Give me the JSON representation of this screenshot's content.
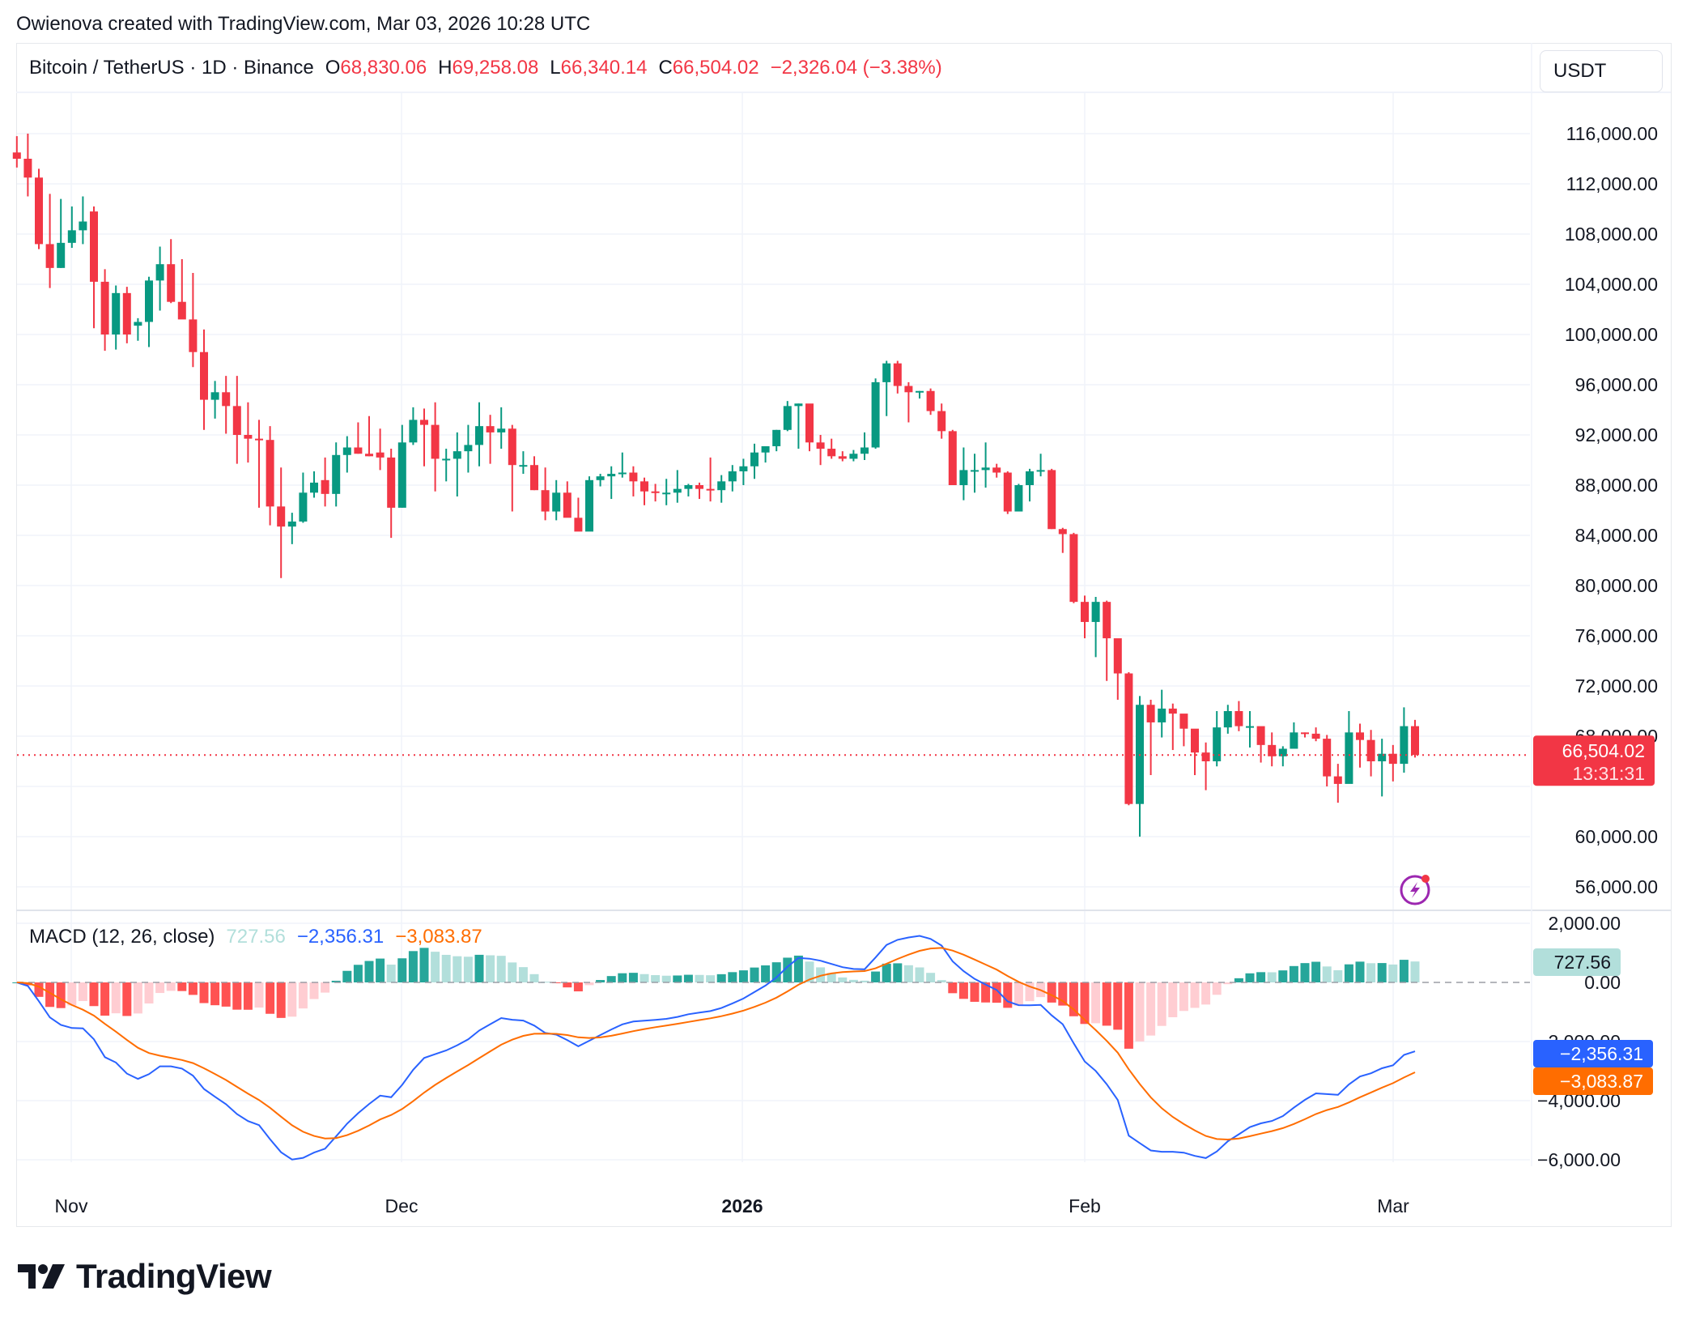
{
  "credit": "Owienova created with TradingView.com, Mar 03, 2026 10:28 UTC",
  "header": {
    "symbol": "Bitcoin / TetherUS · 1D · Binance",
    "open_label": "O",
    "open": "68,830.06",
    "high_label": "H",
    "high": "69,258.08",
    "low_label": "L",
    "low": "66,340.14",
    "close_label": "C",
    "close": "66,504.02",
    "change": "−2,326.04 (−3.38%)",
    "currency": "USDT"
  },
  "price_axis": {
    "ticks": [
      "116,000.00",
      "112,000.00",
      "108,000.00",
      "104,000.00",
      "100,000.00",
      "96,000.00",
      "92,000.00",
      "88,000.00",
      "84,000.00",
      "80,000.00",
      "76,000.00",
      "72,000.00",
      "68,000.00",
      "60,000.00",
      "56,000.00"
    ],
    "last_price": "66,504.02",
    "countdown": "13:31:31"
  },
  "macd": {
    "title": "MACD (12, 26, close)",
    "histogram": "727.56",
    "macd": "−2,356.31",
    "signal": "−3,083.87",
    "axis_ticks": [
      "2,000.00",
      "0.00",
      "−2,000.00",
      "−4,000.00",
      "−6,000.00"
    ]
  },
  "time_axis": {
    "labels": [
      "Nov",
      "Dec",
      "2026",
      "Feb",
      "Mar"
    ]
  },
  "brand": "TradingView",
  "colors": {
    "up": "#089981",
    "down": "#f23645",
    "hist_up_strong": "#26a69a",
    "hist_up_weak": "#b2dfdb",
    "hist_down_strong": "#ff5252",
    "hist_down_weak": "#ffcdd2",
    "macd_line": "#2962ff",
    "signal_line": "#ff6d00",
    "last_price_bg": "#f23645",
    "alert_icon": "#9c27b0"
  },
  "chart_data": {
    "type": "candlestick",
    "title": "Bitcoin / TetherUS · 1D · Binance",
    "xlabel": "",
    "ylabel": "USDT",
    "ylim": [
      54000,
      118000
    ],
    "x_tick_labels": [
      "Nov",
      "Dec",
      "2026",
      "Feb",
      "Mar"
    ],
    "grid": true,
    "candles_ohlc": [
      [
        114500,
        115800,
        113300,
        114000
      ],
      [
        114000,
        116000,
        111000,
        112500
      ],
      [
        112500,
        113200,
        106800,
        107200
      ],
      [
        107200,
        111200,
        103700,
        105300
      ],
      [
        105300,
        110800,
        105300,
        107300
      ],
      [
        107300,
        110200,
        106900,
        108300
      ],
      [
        108300,
        111000,
        107200,
        109000
      ],
      [
        109800,
        110200,
        100500,
        104200
      ],
      [
        104200,
        105200,
        98700,
        100000
      ],
      [
        100000,
        103900,
        98800,
        103300
      ],
      [
        103300,
        103800,
        99300,
        100000
      ],
      [
        100700,
        101300,
        99500,
        101000
      ],
      [
        101000,
        104600,
        99000,
        104300
      ],
      [
        104300,
        107000,
        101900,
        105600
      ],
      [
        105600,
        107600,
        102500,
        102600
      ],
      [
        102600,
        106000,
        101500,
        101200
      ],
      [
        101200,
        104900,
        97400,
        98600
      ],
      [
        98600,
        100400,
        92400,
        94800
      ],
      [
        94800,
        96300,
        93300,
        95400
      ],
      [
        95400,
        96700,
        92100,
        94300
      ],
      [
        94300,
        96700,
        89700,
        92000
      ],
      [
        92000,
        94600,
        89800,
        91700
      ],
      [
        91700,
        93200,
        86200,
        91600
      ],
      [
        91600,
        92700,
        84800,
        86300
      ],
      [
        86300,
        89400,
        80600,
        84700
      ],
      [
        84700,
        85800,
        83300,
        85100
      ],
      [
        85100,
        89000,
        85000,
        87400
      ],
      [
        87400,
        89100,
        87000,
        88200
      ],
      [
        88400,
        90200,
        86300,
        87300
      ],
      [
        87300,
        91400,
        86300,
        90400
      ],
      [
        90400,
        91900,
        89000,
        91000
      ],
      [
        91000,
        93000,
        90500,
        90500
      ],
      [
        90500,
        93500,
        90300,
        90300
      ],
      [
        90600,
        92500,
        89200,
        90200
      ],
      [
        90200,
        90900,
        83800,
        86200
      ],
      [
        86200,
        92800,
        86200,
        91400
      ],
      [
        91400,
        94200,
        91200,
        93200
      ],
      [
        93200,
        94100,
        89500,
        92800
      ],
      [
        92800,
        94600,
        87500,
        90100
      ],
      [
        90100,
        90900,
        88300,
        90100
      ],
      [
        90100,
        92200,
        87100,
        90700
      ],
      [
        90700,
        92800,
        89000,
        91200
      ],
      [
        91200,
        94600,
        89500,
        92700
      ],
      [
        92700,
        93600,
        89700,
        92200
      ],
      [
        92200,
        94200,
        90900,
        92500
      ],
      [
        92500,
        92800,
        85900,
        89600
      ],
      [
        89600,
        90700,
        88900,
        89600
      ],
      [
        89600,
        90300,
        87600,
        87600
      ],
      [
        87600,
        89400,
        85200,
        85900
      ],
      [
        85900,
        88400,
        85200,
        87400
      ],
      [
        87400,
        88300,
        85500,
        85400
      ],
      [
        85400,
        87000,
        84600,
        84300
      ],
      [
        84300,
        88700,
        84600,
        88400
      ],
      [
        88400,
        88900,
        87900,
        88700
      ],
      [
        88700,
        89500,
        86900,
        88900
      ],
      [
        88900,
        90600,
        88600,
        89000
      ],
      [
        89000,
        89500,
        87100,
        88300
      ],
      [
        88300,
        88600,
        86400,
        87500
      ],
      [
        87500,
        88100,
        86700,
        87400
      ],
      [
        87400,
        88500,
        86400,
        87400
      ],
      [
        87400,
        89200,
        86600,
        87700
      ],
      [
        87700,
        88100,
        87100,
        88000
      ],
      [
        88000,
        88200,
        86900,
        87700
      ],
      [
        87700,
        90200,
        86700,
        87600
      ],
      [
        87600,
        88800,
        86600,
        88300
      ],
      [
        88300,
        89600,
        87500,
        89100
      ],
      [
        89100,
        90100,
        88000,
        89500
      ],
      [
        89500,
        91300,
        88500,
        90600
      ],
      [
        90600,
        91000,
        89800,
        91100
      ],
      [
        91100,
        92400,
        90700,
        92400
      ],
      [
        92400,
        94700,
        92300,
        94300
      ],
      [
        94300,
        94500,
        90900,
        94500
      ],
      [
        94500,
        94300,
        90700,
        91400
      ],
      [
        91400,
        92000,
        89600,
        90900
      ],
      [
        90900,
        91700,
        90100,
        90300
      ],
      [
        90300,
        90700,
        89900,
        90100
      ],
      [
        90100,
        90800,
        89900,
        90500
      ],
      [
        90500,
        92200,
        90000,
        91000
      ],
      [
        91000,
        96500,
        90900,
        96200
      ],
      [
        96200,
        97900,
        93500,
        97700
      ],
      [
        97700,
        97900,
        95300,
        95900
      ],
      [
        95900,
        96200,
        93000,
        95400
      ],
      [
        95400,
        95500,
        94900,
        95500
      ],
      [
        95500,
        95700,
        93600,
        93900
      ],
      [
        93900,
        94500,
        91700,
        92300
      ],
      [
        92300,
        92400,
        88000,
        88000
      ],
      [
        88000,
        91000,
        86800,
        89200
      ],
      [
        89200,
        90500,
        87400,
        89200
      ],
      [
        89200,
        91400,
        87800,
        89400
      ],
      [
        89400,
        89700,
        88600,
        89000
      ],
      [
        89000,
        89100,
        85700,
        85900
      ],
      [
        85900,
        88100,
        86000,
        88000
      ],
      [
        88000,
        89300,
        86700,
        89100
      ],
      [
        89100,
        90500,
        88700,
        89200
      ],
      [
        89200,
        89300,
        84500,
        84500
      ],
      [
        84500,
        84600,
        82600,
        84100
      ],
      [
        84100,
        84200,
        78600,
        78700
      ],
      [
        78700,
        79200,
        75800,
        77100
      ],
      [
        77100,
        79100,
        74300,
        78700
      ],
      [
        78700,
        78800,
        72400,
        75800
      ],
      [
        75800,
        75700,
        70900,
        73000
      ],
      [
        73000,
        73100,
        62500,
        62600
      ],
      [
        62600,
        71200,
        60000,
        70500
      ],
      [
        70500,
        70900,
        64900,
        69100
      ],
      [
        69100,
        71700,
        67900,
        70200
      ],
      [
        70200,
        70600,
        66900,
        69800
      ],
      [
        69800,
        69700,
        67200,
        68600
      ],
      [
        68600,
        68200,
        64900,
        66700
      ],
      [
        66700,
        67500,
        63700,
        66000
      ],
      [
        66000,
        70000,
        65600,
        68700
      ],
      [
        68700,
        70500,
        68200,
        70000
      ],
      [
        70000,
        70800,
        68400,
        68800
      ],
      [
        68800,
        70000,
        67100,
        68800
      ],
      [
        68800,
        68600,
        65900,
        67300
      ],
      [
        67300,
        68300,
        65600,
        66400
      ],
      [
        66400,
        67200,
        65600,
        67000
      ],
      [
        67000,
        69100,
        67100,
        68300
      ],
      [
        68300,
        68300,
        67900,
        68200
      ],
      [
        68200,
        68700,
        67600,
        67800
      ],
      [
        67800,
        68100,
        64000,
        64800
      ],
      [
        64800,
        65800,
        62700,
        64200
      ],
      [
        64200,
        70000,
        64300,
        68300
      ],
      [
        68300,
        69000,
        65500,
        67700
      ],
      [
        67700,
        68500,
        64800,
        66000
      ],
      [
        66000,
        67800,
        63200,
        66600
      ],
      [
        66600,
        67300,
        64400,
        65800
      ],
      [
        65800,
        70300,
        65100,
        68800
      ],
      [
        68800,
        69300,
        66300,
        66504
      ]
    ]
  }
}
